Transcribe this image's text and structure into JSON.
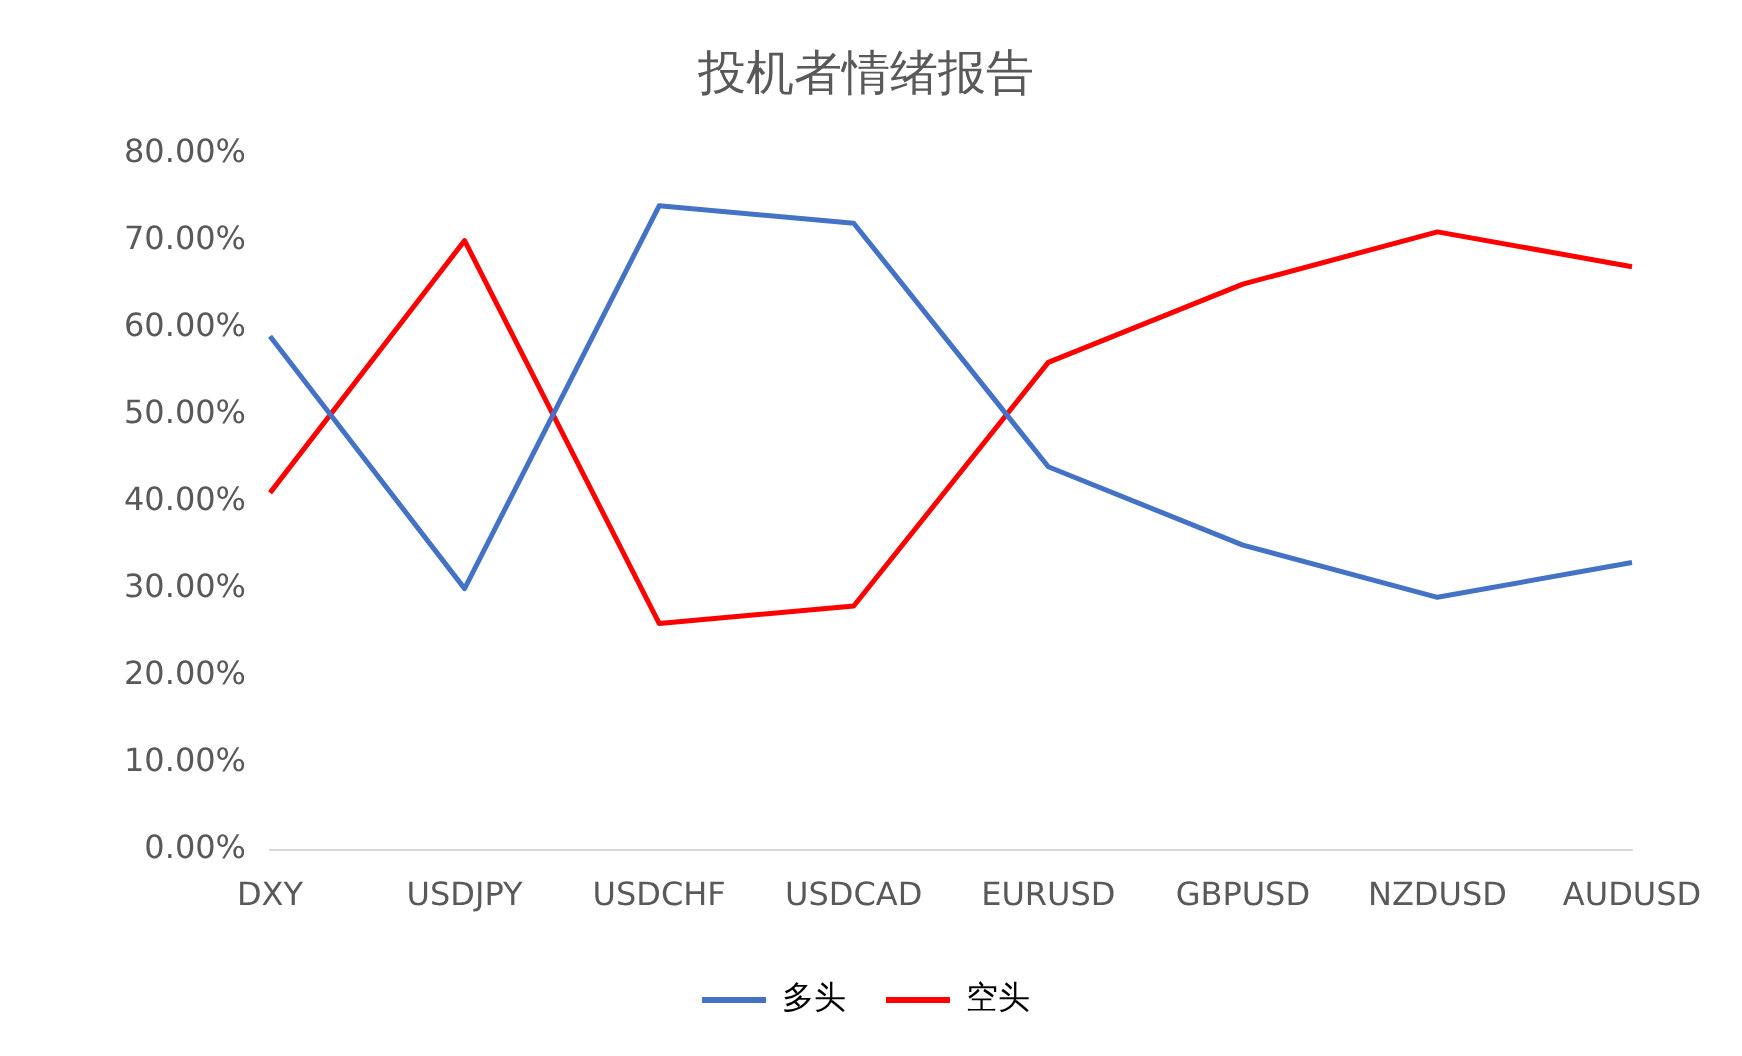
{
  "chart_data": {
    "type": "line",
    "title": "投机者情绪报告",
    "categories": [
      "DXY",
      "USDJPY",
      "USDCHF",
      "USDCAD",
      "EURUSD",
      "GBPUSD",
      "NZDUSD",
      "AUDUSD"
    ],
    "series": [
      {
        "name": "多头",
        "color": "#4472c4",
        "values": [
          59,
          30,
          74,
          72,
          44,
          35,
          29,
          33
        ]
      },
      {
        "name": "空头",
        "color": "#ff0000",
        "values": [
          41,
          70,
          26,
          28,
          56,
          65,
          71,
          67
        ]
      }
    ],
    "ylim": [
      0,
      80
    ],
    "yticks": [
      {
        "value": 0,
        "label": "0.00%"
      },
      {
        "value": 10,
        "label": "10.00%"
      },
      {
        "value": 20,
        "label": "20.00%"
      },
      {
        "value": 30,
        "label": "30.00%"
      },
      {
        "value": 40,
        "label": "40.00%"
      },
      {
        "value": 50,
        "label": "50.00%"
      },
      {
        "value": 60,
        "label": "60.00%"
      },
      {
        "value": 70,
        "label": "70.00%"
      },
      {
        "value": 80,
        "label": "80.00%"
      }
    ],
    "grid": false,
    "legend": "bottom",
    "marker": "none",
    "line_style": "solid"
  }
}
